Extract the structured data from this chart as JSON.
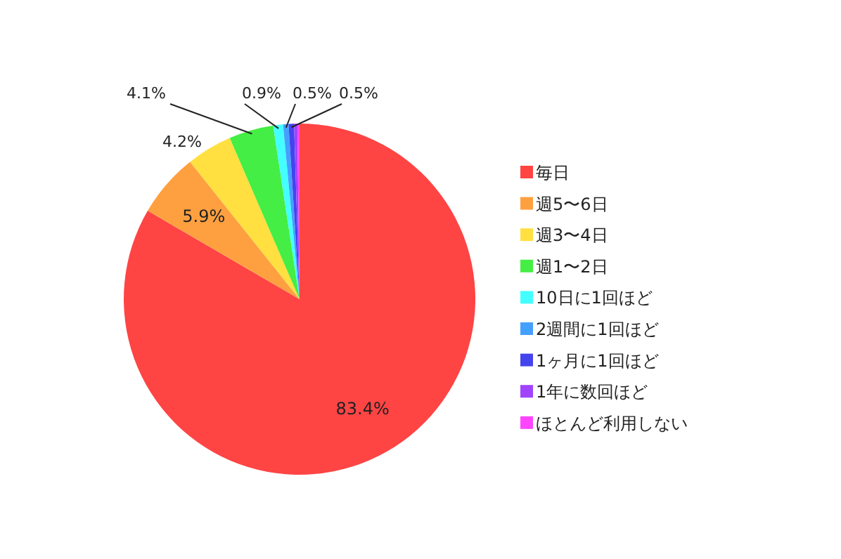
{
  "chart_data": {
    "type": "pie",
    "categories": [
      "毎日",
      "週5〜6日",
      "週3〜4日",
      "週1〜2日",
      "10日に1回ほど",
      "2週間に1回ほど",
      "1ヶ月に1回ほど",
      "1年に数回ほど",
      "ほとんど利用しない"
    ],
    "values": [
      83.4,
      5.9,
      4.2,
      4.1,
      0.9,
      0.5,
      0.5,
      0.3,
      0.2
    ],
    "value_labels": [
      "83.4%",
      "5.9%",
      "4.2%",
      "4.1%",
      "0.9%",
      "0.5%",
      "0.5%",
      null,
      null
    ],
    "colors": [
      "#ff4444",
      "#ffa040",
      "#ffe040",
      "#44ee44",
      "#44ffff",
      "#44a0ff",
      "#4444ee",
      "#a044ff",
      "#ff44ff"
    ],
    "legend": "right"
  }
}
